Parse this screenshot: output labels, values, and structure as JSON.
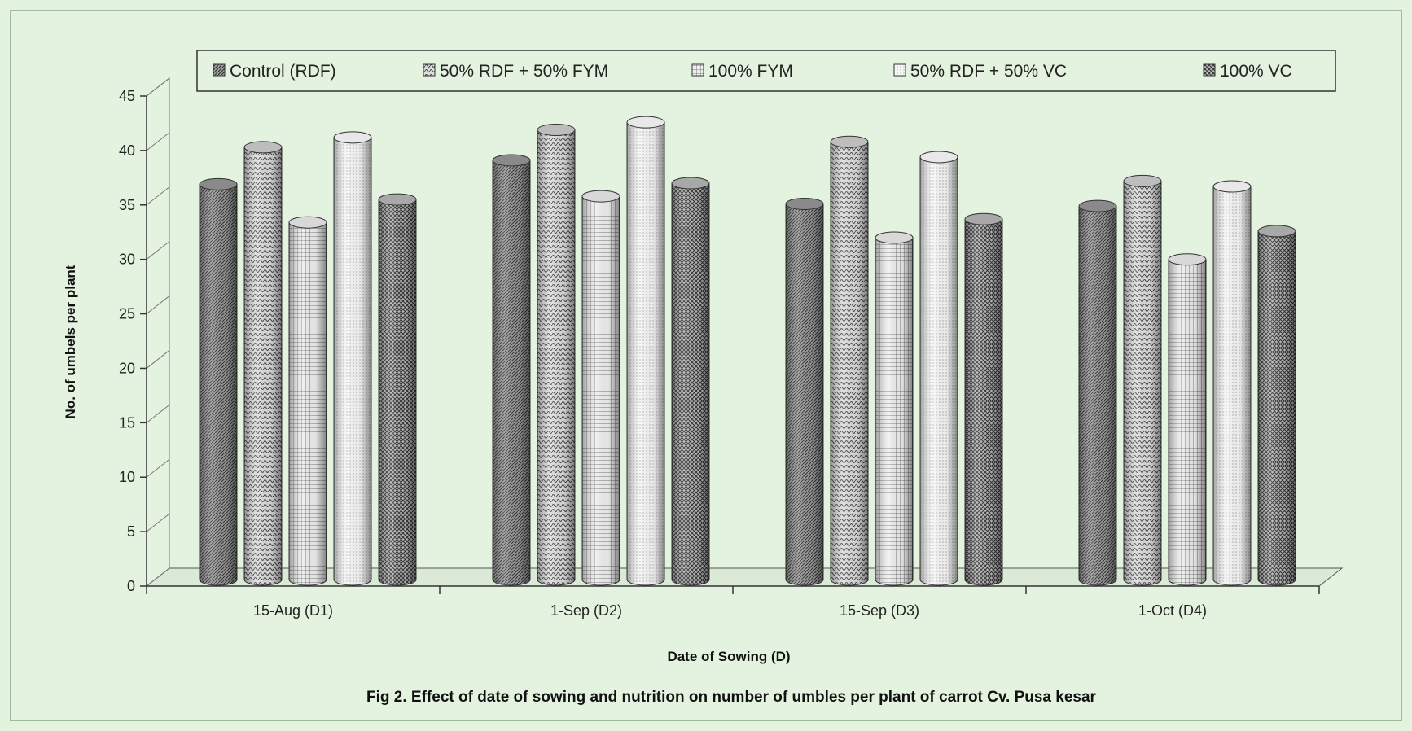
{
  "chart_data": {
    "type": "bar",
    "title": "",
    "caption": "Fig 2. Effect of date of sowing and nutrition on number of umbles per plant of carrot Cv. Pusa kesar",
    "xlabel": "Date of Sowing (D)",
    "ylabel": "No. of umbels per plant",
    "ylim": [
      0,
      45
    ],
    "yticks": [
      "0",
      "5",
      "10",
      "15",
      "20",
      "25",
      "30",
      "35",
      "40",
      "45"
    ],
    "categories": [
      "15-Aug (D1)",
      "1-Sep (D2)",
      "15-Sep (D3)",
      "1-Oct (D4)"
    ],
    "series": [
      {
        "name": "Control (RDF)",
        "values": [
          36.3,
          38.5,
          34.5,
          34.3
        ],
        "color": "#8a8a8a"
      },
      {
        "name": "50% RDF + 50% FYM",
        "values": [
          39.7,
          41.3,
          40.2,
          36.6
        ],
        "color": "#bdbdbd"
      },
      {
        "name": "100% FYM",
        "values": [
          32.8,
          35.2,
          31.4,
          29.4
        ],
        "color": "#d8d8d8"
      },
      {
        "name": "50% RDF + 50% VC",
        "values": [
          40.6,
          42.0,
          38.8,
          36.1
        ],
        "color": "#e8e8e8"
      },
      {
        "name": "100% VC",
        "values": [
          34.9,
          36.4,
          33.1,
          32.0
        ],
        "color": "#a8a8a8"
      }
    ],
    "legend_position": "top",
    "grid": false,
    "style": "3d-cylinder"
  }
}
